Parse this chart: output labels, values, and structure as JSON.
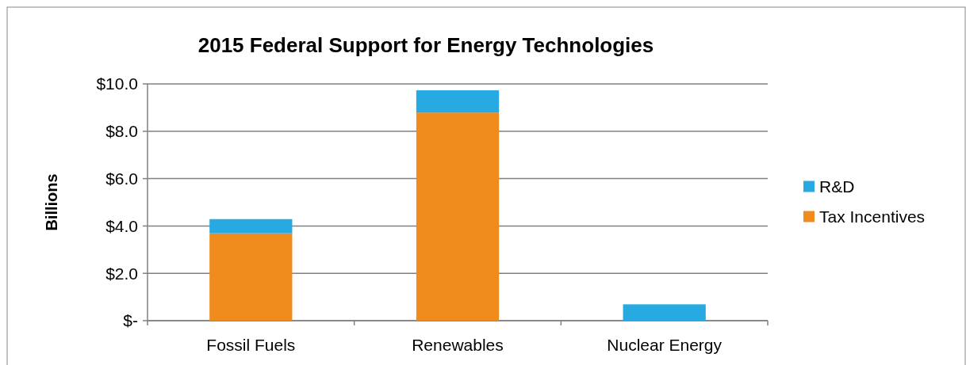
{
  "chart_data": {
    "type": "bar",
    "title": "2015 Federal Support for Energy Technologies",
    "ylabel": "Billions",
    "categories": [
      "Fossil Fuels",
      "Renewables",
      "Nuclear Energy"
    ],
    "stacked": true,
    "series": [
      {
        "name": "Tax Incentives",
        "color": "#f08b1e",
        "values": [
          3.69,
          8.79,
          0
        ]
      },
      {
        "name": "R&D",
        "color": "#27aae1",
        "values": [
          0.6,
          0.94,
          0.69
        ]
      }
    ],
    "ylim": [
      0,
      10
    ],
    "yticks": [
      {
        "value": 0,
        "label": "$-"
      },
      {
        "value": 2,
        "label": "$2.0"
      },
      {
        "value": 4,
        "label": "$4.0"
      },
      {
        "value": 6,
        "label": "$6.0"
      },
      {
        "value": 8,
        "label": "$8.0"
      },
      {
        "value": 10,
        "label": "$10.0"
      }
    ],
    "grid": "y",
    "legend": "right"
  }
}
